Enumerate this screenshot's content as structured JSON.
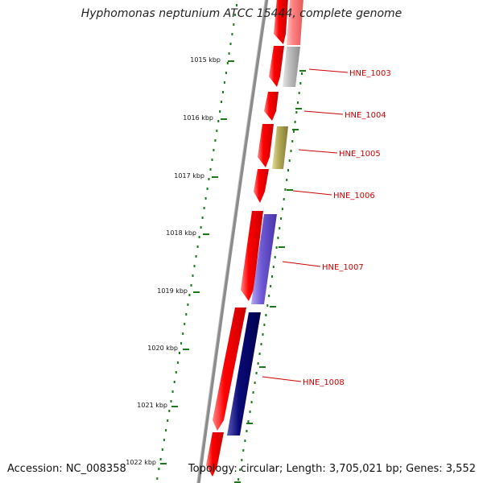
{
  "header": {
    "title": "Hyphomonas neptunium ATCC 15444, complete genome"
  },
  "footer": {
    "accession": "Accession: NC_008358",
    "summary": "Topology: circular; Length: 3,705,021 bp; Genes: 3,552"
  },
  "colors": {
    "forward_cds": "#ff0000",
    "reverse_gray": "#b8b8b8",
    "reverse_olive": "#b5ad5a",
    "reverse_purple": "#6f5ad4",
    "reverse_navy": "#0a0a78",
    "ruler": "#1a7a1a",
    "label": "#cc0000",
    "backbone": "#888888"
  },
  "ruler": {
    "ticks": [
      {
        "label": "1015 kbp",
        "kbp": 1015
      },
      {
        "label": "1016 kbp",
        "kbp": 1016
      },
      {
        "label": "1017 kbp",
        "kbp": 1017
      },
      {
        "label": "1018 kbp",
        "kbp": 1018
      },
      {
        "label": "1019 kbp",
        "kbp": 1019
      },
      {
        "label": "1020 kbp",
        "kbp": 1020
      },
      {
        "label": "1021 kbp",
        "kbp": 1021
      },
      {
        "label": "1022 kbp",
        "kbp": 1022
      }
    ]
  },
  "genes": [
    {
      "name": "HNE_1003",
      "color": "reverse_gray"
    },
    {
      "name": "HNE_1004",
      "color": "forward_cds"
    },
    {
      "name": "HNE_1005",
      "color": "reverse_olive"
    },
    {
      "name": "HNE_1006",
      "color": "forward_cds"
    },
    {
      "name": "HNE_1007",
      "color": "reverse_purple"
    },
    {
      "name": "HNE_1008",
      "color": "reverse_navy"
    }
  ]
}
